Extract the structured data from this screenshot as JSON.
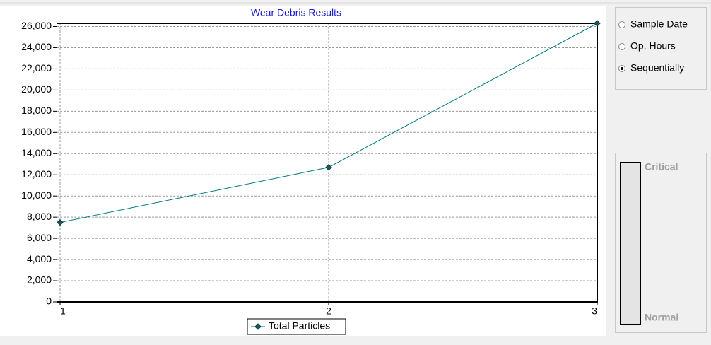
{
  "chart_data": {
    "type": "line",
    "title": "Wear Debris Results",
    "x": [
      1,
      2,
      3
    ],
    "series": [
      {
        "name": "Total Particles",
        "color": "#007b7b",
        "values": [
          7500,
          12700,
          26300
        ]
      }
    ],
    "xlim": [
      1,
      3
    ],
    "xticks": [
      1,
      2,
      3
    ],
    "ylim": [
      0,
      26300
    ],
    "yticks": [
      0,
      {
        "value": 2000,
        "label": "2,000"
      },
      {
        "value": 4000,
        "label": "4,000"
      },
      {
        "value": 6000,
        "label": "6,000"
      },
      {
        "value": 8000,
        "label": "8,000"
      },
      {
        "value": 10000,
        "label": "10,000"
      },
      {
        "value": 12000,
        "label": "12,000"
      },
      {
        "value": 14000,
        "label": "14,000"
      },
      {
        "value": 16000,
        "label": "16,000"
      },
      {
        "value": 18000,
        "label": "18,000"
      },
      {
        "value": 20000,
        "label": "20,000"
      },
      {
        "value": 22000,
        "label": "22,000"
      },
      {
        "value": 24000,
        "label": "24,000"
      },
      {
        "value": 26000,
        "label": "26,000"
      }
    ],
    "grid": true,
    "legend": "bottom"
  },
  "x_axis_mode": {
    "options": [
      "Sample Date",
      "Op. Hours",
      "Sequentially"
    ],
    "selected": 2
  },
  "gauge": {
    "top_label": "Critical",
    "bottom_label": "Normal"
  }
}
